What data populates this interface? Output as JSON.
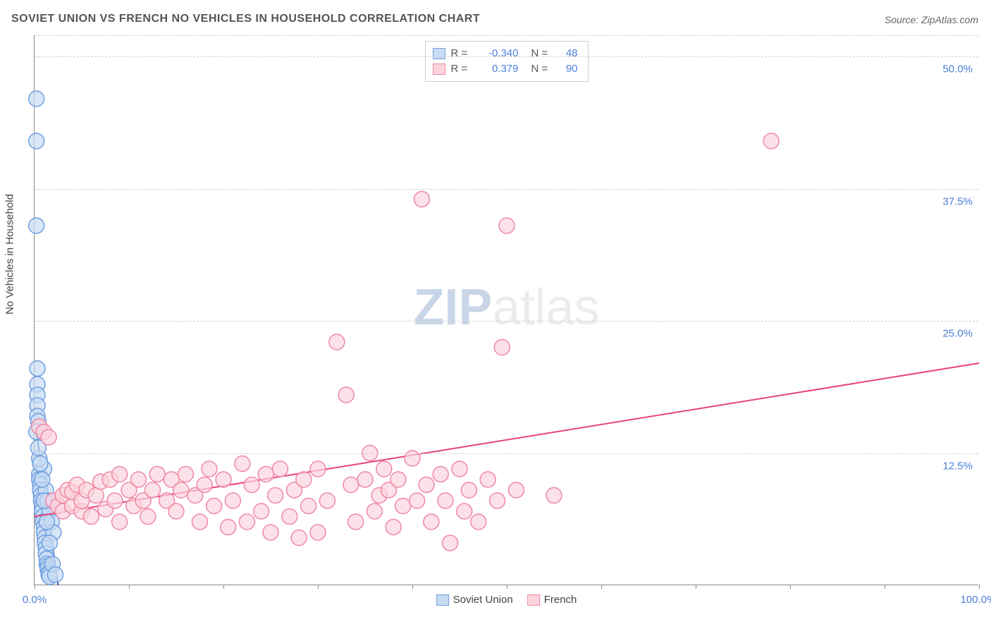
{
  "title": "SOVIET UNION VS FRENCH NO VEHICLES IN HOUSEHOLD CORRELATION CHART",
  "source": "Source: ZipAtlas.com",
  "y_axis_title": "No Vehicles in Household",
  "watermark": {
    "part1": "ZIP",
    "part2": "atlas"
  },
  "chart": {
    "type": "scatter",
    "xlim": [
      0,
      100
    ],
    "ylim": [
      0,
      52
    ],
    "x_ticks": [
      0,
      10,
      20,
      30,
      40,
      50,
      60,
      70,
      80,
      90,
      100
    ],
    "x_tick_labels": {
      "first": "0.0%",
      "last": "100.0%"
    },
    "y_gridlines": [
      12.5,
      25.0,
      37.5,
      50.0
    ],
    "y_grid_color": "#d0d0d0",
    "y_tick_labels": [
      "12.5%",
      "25.0%",
      "37.5%",
      "50.0%"
    ],
    "background_color": "#ffffff",
    "axis_color": "#888888",
    "tick_label_color": "#4a7fd8",
    "marker_radius": 11,
    "marker_stroke_width": 1.5,
    "series": [
      {
        "name": "Soviet Union",
        "fill": "#c7dbf4",
        "stroke": "#6f9fe0",
        "line_color": "#2a5db0",
        "line_width": 2,
        "R": "-0.340",
        "N": "48",
        "trend": {
          "x1": 0.2,
          "y1": 14.5,
          "x2": 2.5,
          "y2": 0
        },
        "points": [
          {
            "x": 0.2,
            "y": 46
          },
          {
            "x": 0.2,
            "y": 42
          },
          {
            "x": 0.2,
            "y": 34
          },
          {
            "x": 0.3,
            "y": 20.5
          },
          {
            "x": 0.3,
            "y": 19
          },
          {
            "x": 0.3,
            "y": 18
          },
          {
            "x": 0.3,
            "y": 17
          },
          {
            "x": 0.3,
            "y": 16
          },
          {
            "x": 0.4,
            "y": 15.5
          },
          {
            "x": 0.2,
            "y": 14.5
          },
          {
            "x": 0.5,
            "y": 10.5
          },
          {
            "x": 0.5,
            "y": 10
          },
          {
            "x": 0.6,
            "y": 9.5
          },
          {
            "x": 0.6,
            "y": 9
          },
          {
            "x": 0.7,
            "y": 8.5
          },
          {
            "x": 0.7,
            "y": 8
          },
          {
            "x": 0.8,
            "y": 7.5
          },
          {
            "x": 0.8,
            "y": 7
          },
          {
            "x": 0.9,
            "y": 6.5
          },
          {
            "x": 0.9,
            "y": 6
          },
          {
            "x": 1.0,
            "y": 5.5
          },
          {
            "x": 1.0,
            "y": 5
          },
          {
            "x": 1.1,
            "y": 4.5
          },
          {
            "x": 1.1,
            "y": 4
          },
          {
            "x": 1.2,
            "y": 3.5
          },
          {
            "x": 1.2,
            "y": 3
          },
          {
            "x": 1.3,
            "y": 2.5
          },
          {
            "x": 1.3,
            "y": 2
          },
          {
            "x": 1.4,
            "y": 1.8
          },
          {
            "x": 1.4,
            "y": 1.5
          },
          {
            "x": 1.5,
            "y": 1.2
          },
          {
            "x": 1.5,
            "y": 1.0
          },
          {
            "x": 1.6,
            "y": 0.8
          },
          {
            "x": 1.0,
            "y": 11
          },
          {
            "x": 1.2,
            "y": 9
          },
          {
            "x": 1.4,
            "y": 8
          },
          {
            "x": 1.6,
            "y": 7
          },
          {
            "x": 1.8,
            "y": 6
          },
          {
            "x": 2.0,
            "y": 5
          },
          {
            "x": 0.5,
            "y": 12
          },
          {
            "x": 0.6,
            "y": 11.5
          },
          {
            "x": 0.4,
            "y": 13
          },
          {
            "x": 0.8,
            "y": 10
          },
          {
            "x": 1.0,
            "y": 8
          },
          {
            "x": 1.3,
            "y": 6
          },
          {
            "x": 1.6,
            "y": 4
          },
          {
            "x": 1.9,
            "y": 2
          },
          {
            "x": 2.2,
            "y": 1
          }
        ]
      },
      {
        "name": "French",
        "fill": "#fbd4de",
        "stroke": "#ef87a5",
        "line_color": "#e6437a",
        "line_width": 2,
        "R": "0.379",
        "N": "90",
        "trend": {
          "x1": 0,
          "y1": 6.5,
          "x2": 100,
          "y2": 21
        },
        "points": [
          {
            "x": 0.5,
            "y": 15
          },
          {
            "x": 1,
            "y": 14.5
          },
          {
            "x": 1.5,
            "y": 14
          },
          {
            "x": 2,
            "y": 8
          },
          {
            "x": 2.5,
            "y": 7.5
          },
          {
            "x": 3,
            "y": 8.5
          },
          {
            "x": 3,
            "y": 7
          },
          {
            "x": 3.5,
            "y": 9
          },
          {
            "x": 4,
            "y": 7.5
          },
          {
            "x": 4,
            "y": 8.8
          },
          {
            "x": 4.5,
            "y": 9.5
          },
          {
            "x": 5,
            "y": 7
          },
          {
            "x": 5,
            "y": 8
          },
          {
            "x": 5.5,
            "y": 9
          },
          {
            "x": 6,
            "y": 6.5
          },
          {
            "x": 6.5,
            "y": 8.5
          },
          {
            "x": 7,
            "y": 9.8
          },
          {
            "x": 7.5,
            "y": 7.2
          },
          {
            "x": 8,
            "y": 10
          },
          {
            "x": 8.5,
            "y": 8
          },
          {
            "x": 9,
            "y": 6
          },
          {
            "x": 9,
            "y": 10.5
          },
          {
            "x": 10,
            "y": 9
          },
          {
            "x": 10.5,
            "y": 7.5
          },
          {
            "x": 11,
            "y": 10
          },
          {
            "x": 11.5,
            "y": 8
          },
          {
            "x": 12,
            "y": 6.5
          },
          {
            "x": 12.5,
            "y": 9
          },
          {
            "x": 13,
            "y": 10.5
          },
          {
            "x": 14,
            "y": 8
          },
          {
            "x": 14.5,
            "y": 10
          },
          {
            "x": 15,
            "y": 7
          },
          {
            "x": 15.5,
            "y": 9
          },
          {
            "x": 16,
            "y": 10.5
          },
          {
            "x": 17,
            "y": 8.5
          },
          {
            "x": 17.5,
            "y": 6
          },
          {
            "x": 18,
            "y": 9.5
          },
          {
            "x": 18.5,
            "y": 11
          },
          {
            "x": 19,
            "y": 7.5
          },
          {
            "x": 20,
            "y": 10
          },
          {
            "x": 20.5,
            "y": 5.5
          },
          {
            "x": 21,
            "y": 8
          },
          {
            "x": 22,
            "y": 11.5
          },
          {
            "x": 22.5,
            "y": 6
          },
          {
            "x": 23,
            "y": 9.5
          },
          {
            "x": 24,
            "y": 7
          },
          {
            "x": 24.5,
            "y": 10.5
          },
          {
            "x": 25,
            "y": 5
          },
          {
            "x": 25.5,
            "y": 8.5
          },
          {
            "x": 26,
            "y": 11
          },
          {
            "x": 27,
            "y": 6.5
          },
          {
            "x": 27.5,
            "y": 9
          },
          {
            "x": 28,
            "y": 4.5
          },
          {
            "x": 28.5,
            "y": 10
          },
          {
            "x": 29,
            "y": 7.5
          },
          {
            "x": 30,
            "y": 11
          },
          {
            "x": 30,
            "y": 5
          },
          {
            "x": 31,
            "y": 8
          },
          {
            "x": 32,
            "y": 23
          },
          {
            "x": 33,
            "y": 18
          },
          {
            "x": 33.5,
            "y": 9.5
          },
          {
            "x": 34,
            "y": 6
          },
          {
            "x": 35,
            "y": 10
          },
          {
            "x": 35.5,
            "y": 12.5
          },
          {
            "x": 36,
            "y": 7
          },
          {
            "x": 36.5,
            "y": 8.5
          },
          {
            "x": 37,
            "y": 11
          },
          {
            "x": 37.5,
            "y": 9
          },
          {
            "x": 38,
            "y": 5.5
          },
          {
            "x": 38.5,
            "y": 10
          },
          {
            "x": 39,
            "y": 7.5
          },
          {
            "x": 40,
            "y": 12
          },
          {
            "x": 40.5,
            "y": 8
          },
          {
            "x": 41,
            "y": 36.5
          },
          {
            "x": 41.5,
            "y": 9.5
          },
          {
            "x": 42,
            "y": 6
          },
          {
            "x": 43,
            "y": 10.5
          },
          {
            "x": 43.5,
            "y": 8
          },
          {
            "x": 44,
            "y": 4
          },
          {
            "x": 45,
            "y": 11
          },
          {
            "x": 45.5,
            "y": 7
          },
          {
            "x": 46,
            "y": 9
          },
          {
            "x": 47,
            "y": 6
          },
          {
            "x": 48,
            "y": 10
          },
          {
            "x": 49,
            "y": 8
          },
          {
            "x": 49.5,
            "y": 22.5
          },
          {
            "x": 50,
            "y": 34
          },
          {
            "x": 51,
            "y": 9
          },
          {
            "x": 55,
            "y": 8.5
          },
          {
            "x": 78,
            "y": 42
          }
        ]
      }
    ]
  },
  "legend_bottom": [
    {
      "label": "Soviet Union",
      "fill": "#c7dbf4",
      "stroke": "#6f9fe0"
    },
    {
      "label": "French",
      "fill": "#fbd4de",
      "stroke": "#ef87a5"
    }
  ]
}
